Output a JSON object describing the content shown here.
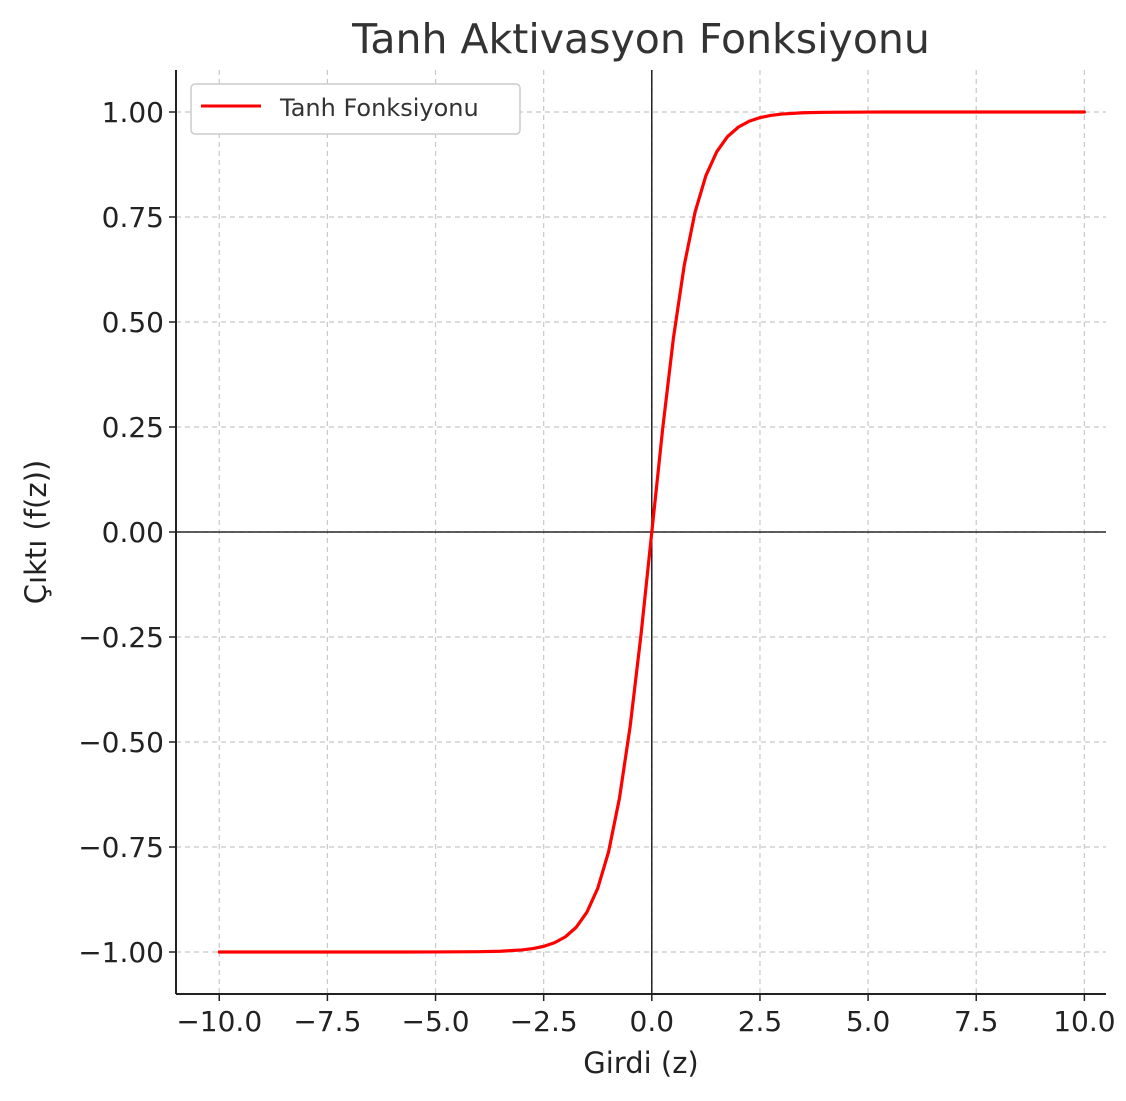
{
  "chart_data": {
    "type": "line",
    "title": "Tanh Aktivasyon Fonksiyonu",
    "xlabel": "Girdi (z)",
    "ylabel": "Çıktı (f(z))",
    "xlim": [
      -11.0,
      10.5
    ],
    "ylim": [
      -1.1,
      1.1
    ],
    "xticks": [
      -10.0,
      -7.5,
      -5.0,
      -2.5,
      0.0,
      2.5,
      5.0,
      7.5,
      10.0
    ],
    "xtick_labels": [
      "−10.0",
      "−7.5",
      "−5.0",
      "−2.5",
      "0.0",
      "2.5",
      "5.0",
      "7.5",
      "10.0"
    ],
    "yticks": [
      -1.0,
      -0.75,
      -0.5,
      -0.25,
      0.0,
      0.25,
      0.5,
      0.75,
      1.0
    ],
    "ytick_labels": [
      "−1.00",
      "−0.75",
      "−0.50",
      "−0.25",
      "0.00",
      "0.25",
      "0.50",
      "0.75",
      "1.00"
    ],
    "grid": true,
    "legend_position": "top-left",
    "series": [
      {
        "name": "Tanh Fonksiyonu",
        "color": "#ff0000",
        "x": [
          -10.0,
          -9.0,
          -8.0,
          -7.0,
          -6.0,
          -5.0,
          -4.0,
          -3.5,
          -3.0,
          -2.75,
          -2.5,
          -2.25,
          -2.0,
          -1.75,
          -1.5,
          -1.25,
          -1.0,
          -0.75,
          -0.5,
          -0.25,
          0.0,
          0.25,
          0.5,
          0.75,
          1.0,
          1.25,
          1.5,
          1.75,
          2.0,
          2.25,
          2.5,
          2.75,
          3.0,
          3.5,
          4.0,
          5.0,
          6.0,
          7.0,
          8.0,
          9.0,
          10.0
        ],
        "y": [
          -1.0,
          -1.0,
          -1.0,
          -1.0,
          -1.0,
          -0.9999,
          -0.9993,
          -0.9982,
          -0.9951,
          -0.9918,
          -0.9866,
          -0.978,
          -0.964,
          -0.9414,
          -0.9051,
          -0.8483,
          -0.7616,
          -0.6351,
          -0.4621,
          -0.2449,
          0.0,
          0.2449,
          0.4621,
          0.6351,
          0.7616,
          0.8483,
          0.9051,
          0.9414,
          0.964,
          0.978,
          0.9866,
          0.9918,
          0.9951,
          0.9982,
          0.9993,
          0.9999,
          1.0,
          1.0,
          1.0,
          1.0,
          1.0
        ]
      }
    ]
  },
  "colors": {
    "series": "#ff0000",
    "grid": "#c8c8c8",
    "axes": "#222222",
    "zero_lines": "#000000"
  }
}
